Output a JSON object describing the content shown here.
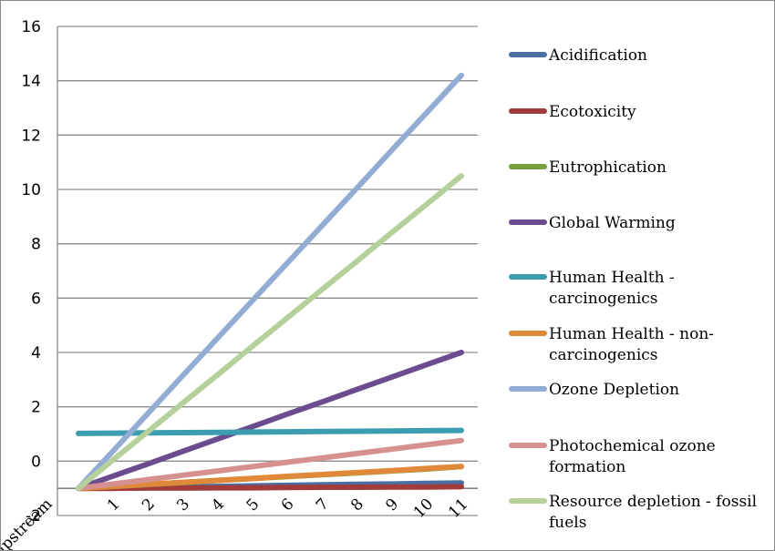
{
  "chart_data": {
    "type": "line",
    "categories": [
      "upstream",
      "1",
      "2",
      "3",
      "4",
      "5",
      "6",
      "7",
      "8",
      "9",
      "10",
      "11"
    ],
    "ylim": [
      -2,
      16
    ],
    "yticks": [
      "-2",
      "0",
      "2",
      "4",
      "6",
      "8",
      "10",
      "12",
      "14",
      "16"
    ],
    "ytick_values": [
      -2,
      0,
      2,
      4,
      6,
      8,
      10,
      12,
      14,
      16
    ],
    "grid": true,
    "legend_position": "right",
    "series": [
      {
        "name": "Acidification",
        "color": "#4a6fa5",
        "values": [
          -1,
          -0.98,
          -0.96,
          -0.94,
          -0.93,
          -0.91,
          -0.89,
          -0.87,
          -0.85,
          -0.84,
          -0.82,
          -0.8
        ]
      },
      {
        "name": "Ecotoxicity",
        "color": "#a23c3c",
        "values": [
          -1,
          -1,
          -0.99,
          -0.99,
          -0.98,
          -0.98,
          -0.97,
          -0.96,
          -0.96,
          -0.95,
          -0.95,
          -0.94
        ]
      },
      {
        "name": "Eutrophication",
        "color": "#76a13e",
        "values": [
          -1,
          -0.93,
          -0.86,
          -0.79,
          -0.71,
          -0.64,
          -0.57,
          -0.5,
          -0.43,
          -0.36,
          -0.29,
          -0.2
        ]
      },
      {
        "name": "Global Warming",
        "color": "#6b4c8f",
        "values": [
          -1,
          -0.55,
          -0.1,
          0.36,
          0.82,
          1.27,
          1.73,
          2.18,
          2.64,
          3.09,
          3.55,
          4
        ]
      },
      {
        "name": "Human Health - carcinogenics",
        "color": "#3c9cb0",
        "values": [
          1.02,
          1.03,
          1.04,
          1.05,
          1.06,
          1.07,
          1.08,
          1.09,
          1.1,
          1.11,
          1.12,
          1.13
        ]
      },
      {
        "name": "Human Health - non-carcinogenics",
        "color": "#e0893a",
        "values": [
          -1,
          -0.93,
          -0.85,
          -0.78,
          -0.71,
          -0.64,
          -0.56,
          -0.49,
          -0.42,
          -0.35,
          -0.27,
          -0.2
        ]
      },
      {
        "name": "Ozone Depletion",
        "color": "#93acd4",
        "values": [
          -1,
          0.38,
          1.76,
          3.15,
          4.53,
          5.91,
          7.29,
          8.67,
          10.05,
          11.44,
          12.82,
          14.2
        ]
      },
      {
        "name": "Photochemical ozone formation",
        "color": "#d6908f",
        "values": [
          -1,
          -0.84,
          -0.68,
          -0.52,
          -0.36,
          -0.2,
          -0.04,
          0.12,
          0.28,
          0.44,
          0.6,
          0.76
        ]
      },
      {
        "name": "Resource depletion - fossil fuels",
        "color": "#b5d09b",
        "values": [
          -1,
          0.05,
          1.09,
          2.14,
          3.18,
          4.23,
          5.27,
          6.32,
          7.36,
          8.41,
          9.45,
          10.5
        ]
      }
    ]
  }
}
